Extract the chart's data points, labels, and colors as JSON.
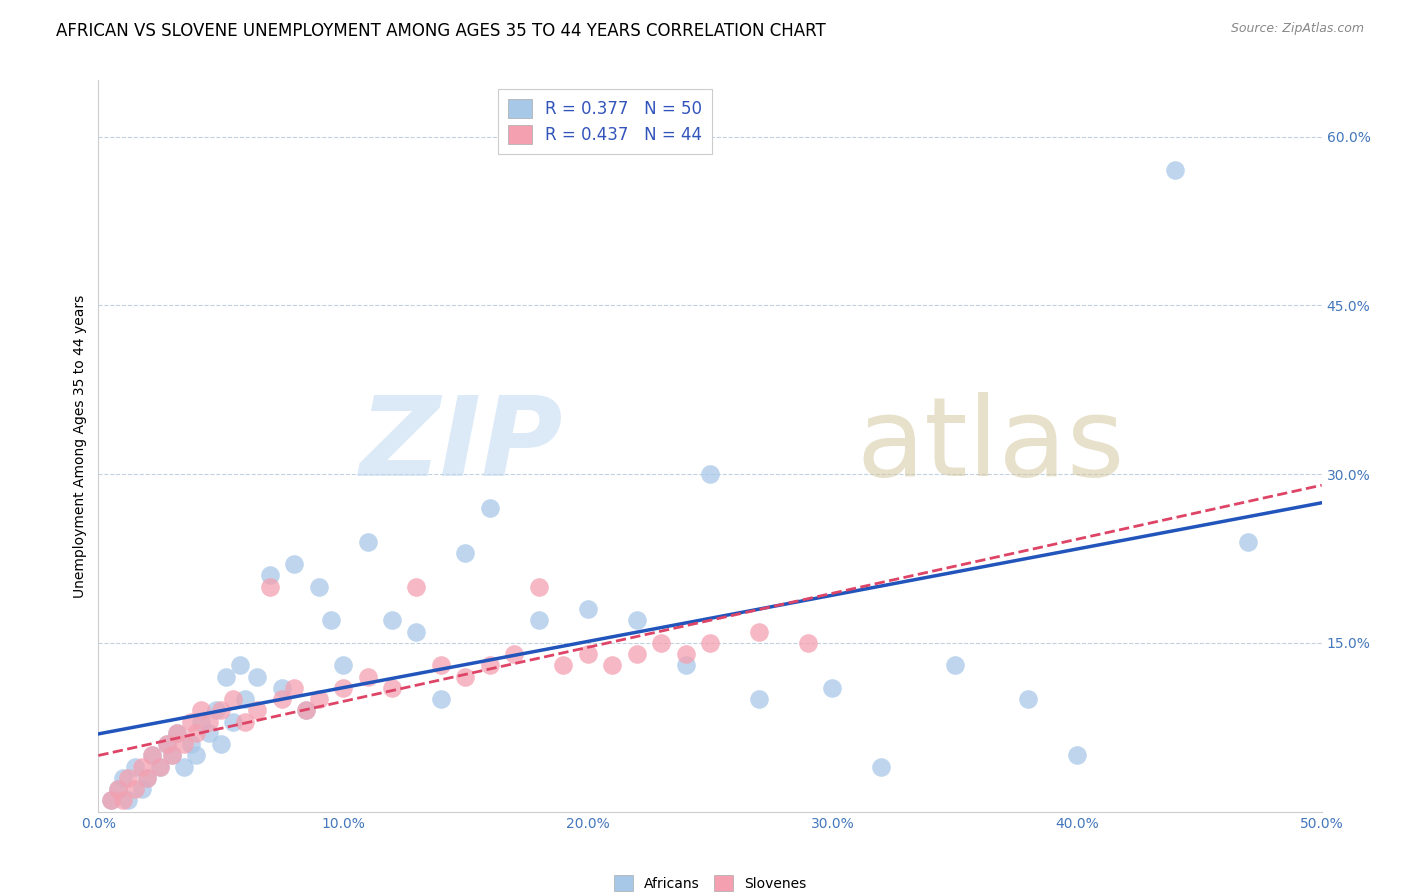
{
  "title": "AFRICAN VS SLOVENE UNEMPLOYMENT AMONG AGES 35 TO 44 YEARS CORRELATION CHART",
  "source": "Source: ZipAtlas.com",
  "ylabel": "Unemployment Among Ages 35 to 44 years",
  "xlim": [
    0.0,
    0.5
  ],
  "ylim": [
    0.0,
    0.65
  ],
  "xticks": [
    0.0,
    0.1,
    0.2,
    0.3,
    0.4,
    0.5
  ],
  "yticks": [
    0.15,
    0.3,
    0.45,
    0.6
  ],
  "xticklabels": [
    "0.0%",
    "10.0%",
    "20.0%",
    "30.0%",
    "40.0%",
    "50.0%"
  ],
  "yticklabels": [
    "15.0%",
    "30.0%",
    "45.0%",
    "60.0%"
  ],
  "africans_x": [
    0.005,
    0.008,
    0.01,
    0.012,
    0.015,
    0.018,
    0.02,
    0.022,
    0.025,
    0.028,
    0.03,
    0.032,
    0.035,
    0.038,
    0.04,
    0.042,
    0.045,
    0.048,
    0.05,
    0.052,
    0.055,
    0.058,
    0.06,
    0.065,
    0.07,
    0.075,
    0.08,
    0.085,
    0.09,
    0.095,
    0.1,
    0.11,
    0.12,
    0.13,
    0.14,
    0.15,
    0.16,
    0.18,
    0.2,
    0.22,
    0.24,
    0.25,
    0.27,
    0.3,
    0.32,
    0.35,
    0.38,
    0.4,
    0.44,
    0.47
  ],
  "africans_y": [
    0.01,
    0.02,
    0.03,
    0.01,
    0.04,
    0.02,
    0.03,
    0.05,
    0.04,
    0.06,
    0.05,
    0.07,
    0.04,
    0.06,
    0.05,
    0.08,
    0.07,
    0.09,
    0.06,
    0.12,
    0.08,
    0.13,
    0.1,
    0.12,
    0.21,
    0.11,
    0.22,
    0.09,
    0.2,
    0.17,
    0.13,
    0.24,
    0.17,
    0.16,
    0.1,
    0.23,
    0.27,
    0.17,
    0.18,
    0.17,
    0.13,
    0.3,
    0.1,
    0.11,
    0.04,
    0.13,
    0.1,
    0.05,
    0.57,
    0.24
  ],
  "slovenes_x": [
    0.005,
    0.008,
    0.01,
    0.012,
    0.015,
    0.018,
    0.02,
    0.022,
    0.025,
    0.028,
    0.03,
    0.032,
    0.035,
    0.038,
    0.04,
    0.042,
    0.045,
    0.05,
    0.055,
    0.06,
    0.065,
    0.07,
    0.075,
    0.08,
    0.085,
    0.09,
    0.1,
    0.11,
    0.12,
    0.13,
    0.14,
    0.15,
    0.16,
    0.17,
    0.18,
    0.19,
    0.2,
    0.21,
    0.22,
    0.23,
    0.24,
    0.25,
    0.27,
    0.29
  ],
  "slovenes_y": [
    0.01,
    0.02,
    0.01,
    0.03,
    0.02,
    0.04,
    0.03,
    0.05,
    0.04,
    0.06,
    0.05,
    0.07,
    0.06,
    0.08,
    0.07,
    0.09,
    0.08,
    0.09,
    0.1,
    0.08,
    0.09,
    0.2,
    0.1,
    0.11,
    0.09,
    0.1,
    0.11,
    0.12,
    0.11,
    0.2,
    0.13,
    0.12,
    0.13,
    0.14,
    0.2,
    0.13,
    0.14,
    0.13,
    0.14,
    0.15,
    0.14,
    0.15,
    0.16,
    0.15
  ],
  "african_color": "#a8c8e8",
  "slovene_color": "#f4a0b0",
  "african_line_color": "#2255bb",
  "slovene_line_color": "#dd4466",
  "african_R": 0.377,
  "african_N": 50,
  "slovene_R": 0.437,
  "slovene_N": 44,
  "legend_text_color": "#3355bb",
  "title_fontsize": 12,
  "axis_label_fontsize": 10,
  "tick_fontsize": 10,
  "tick_color": "#4477bb"
}
